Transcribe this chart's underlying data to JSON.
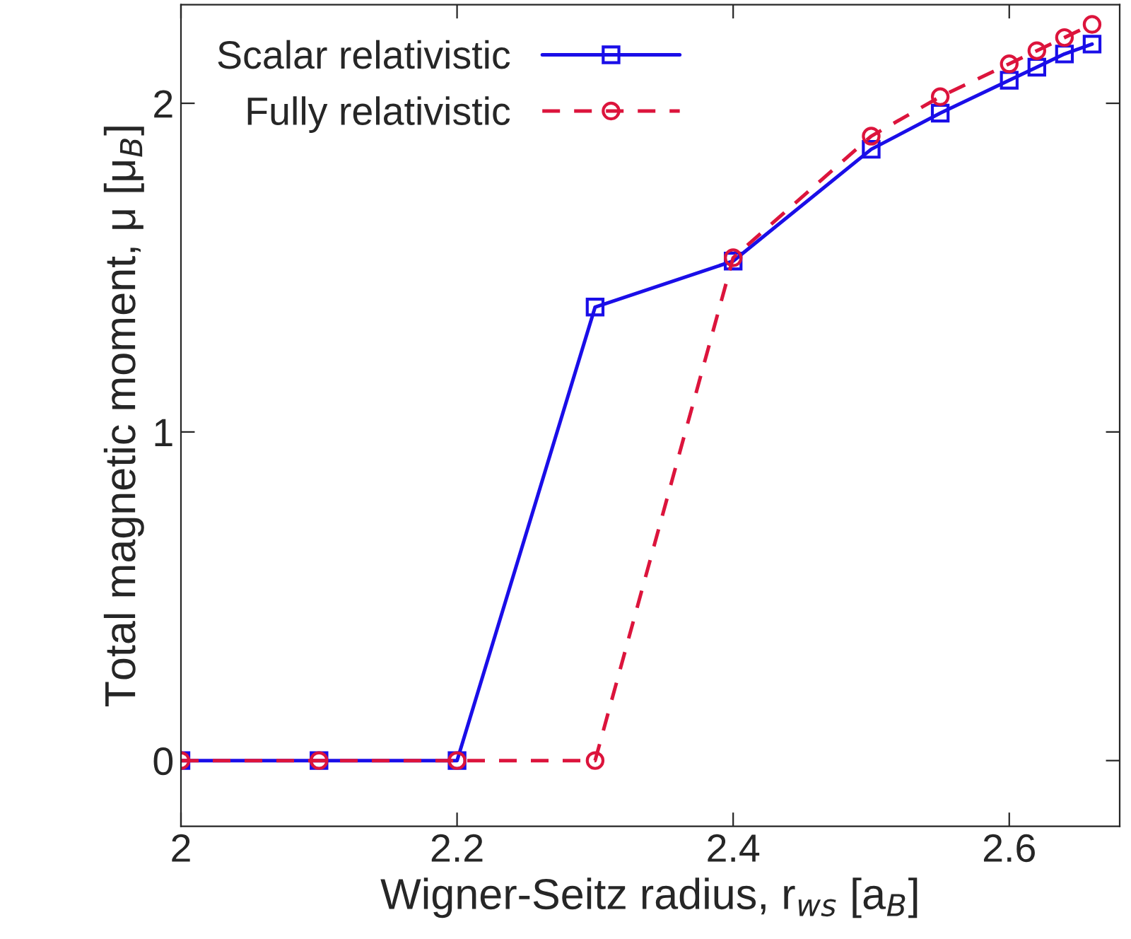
{
  "chart_data": {
    "type": "line",
    "xlabel": "Wigner-Seitz radius, r$_{ws}$ [a$_{B}$]",
    "ylabel": "Total magnetic moment, μ [μ$_{B}$]",
    "series": [
      {
        "name": "Scalar relativistic",
        "color": "#1a0ee8",
        "marker": "square",
        "line_style": "solid",
        "x": [
          2.0,
          2.1,
          2.2,
          2.3,
          2.4,
          2.5,
          2.55,
          2.6,
          2.62,
          2.64,
          2.66
        ],
        "values": [
          0,
          0,
          0,
          1.38,
          1.52,
          1.86,
          1.97,
          2.07,
          2.11,
          2.15,
          2.18
        ]
      },
      {
        "name": "Fully relativistic",
        "color": "#dc143c",
        "marker": "circle",
        "line_style": "dashed",
        "x": [
          2.0,
          2.1,
          2.2,
          2.3,
          2.4,
          2.5,
          2.55,
          2.6,
          2.62,
          2.64,
          2.66
        ],
        "values": [
          0,
          0,
          0,
          0,
          1.53,
          1.9,
          2.02,
          2.12,
          2.16,
          2.2,
          2.24
        ]
      }
    ],
    "xlim": [
      2.0,
      2.68
    ],
    "ylim": [
      -0.2,
      2.3
    ],
    "xticks": [
      {
        "value": 2.0,
        "label": "2"
      },
      2.2,
      2.4,
      2.6
    ],
    "yticks": [
      0,
      1,
      2
    ],
    "grid": false,
    "legend": "top left"
  }
}
